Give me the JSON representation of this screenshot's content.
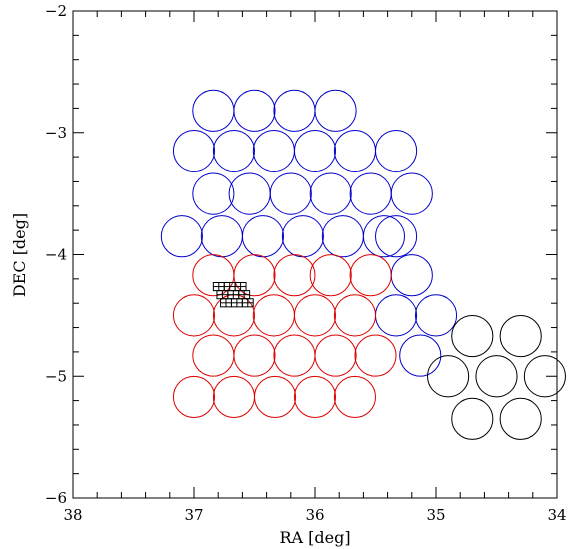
{
  "chart_data": {
    "type": "scatter",
    "title": "",
    "xlabel": "RA [deg]",
    "ylabel": "DEC [deg]",
    "xlim": [
      38,
      34
    ],
    "ylim": [
      -6,
      -2
    ],
    "x_ticks": [
      "38",
      "37",
      "36",
      "35",
      "34"
    ],
    "y_ticks": [
      "−2",
      "−3",
      "−4",
      "−5",
      "−6"
    ],
    "grid": false,
    "legend": "none",
    "colors": {
      "blue": "#0000cc",
      "red": "#dd0000",
      "black": "#000000"
    },
    "series": [
      {
        "color": "blue",
        "marker": "open-circle",
        "x": [
          36.84,
          36.5,
          36.17,
          35.83,
          37.0,
          36.67,
          36.34,
          36.0,
          35.67,
          35.33,
          36.84,
          36.54,
          36.2,
          35.87,
          35.54,
          35.2,
          37.1,
          36.77,
          36.43,
          36.1,
          35.77,
          35.43,
          35.33,
          35.2,
          35.33,
          35.0,
          35.13
        ],
        "y": [
          -2.82,
          -2.82,
          -2.82,
          -2.82,
          -3.15,
          -3.15,
          -3.15,
          -3.15,
          -3.15,
          -3.15,
          -3.5,
          -3.5,
          -3.5,
          -3.5,
          -3.5,
          -3.5,
          -3.85,
          -3.85,
          -3.85,
          -3.85,
          -3.85,
          -3.85,
          -3.85,
          -4.17,
          -4.5,
          -4.5,
          -4.83
        ]
      },
      {
        "color": "red",
        "marker": "open-circle",
        "x": [
          36.84,
          36.5,
          36.17,
          35.87,
          35.54,
          37.0,
          36.67,
          36.34,
          36.0,
          35.67,
          36.84,
          36.5,
          36.17,
          35.83,
          35.5,
          37.0,
          36.67,
          36.33,
          36.0,
          35.67
        ],
        "y": [
          -4.17,
          -4.17,
          -4.17,
          -4.17,
          -4.17,
          -4.5,
          -4.5,
          -4.5,
          -4.5,
          -4.5,
          -4.83,
          -4.83,
          -4.83,
          -4.83,
          -4.83,
          -5.17,
          -5.17,
          -5.17,
          -5.17,
          -5.17
        ]
      },
      {
        "color": "black",
        "marker": "open-circle",
        "x": [
          34.7,
          34.3,
          34.9,
          34.5,
          34.1,
          34.7,
          34.3
        ],
        "y": [
          -4.67,
          -4.67,
          -5.0,
          -5.0,
          -5.0,
          -5.35,
          -5.35
        ]
      }
    ],
    "footprint_grid": {
      "color": "black",
      "ra_range": [
        36.84,
        36.57
      ],
      "dec_range": [
        -4.23,
        -4.43
      ],
      "cols": 3,
      "rows": 3
    }
  }
}
